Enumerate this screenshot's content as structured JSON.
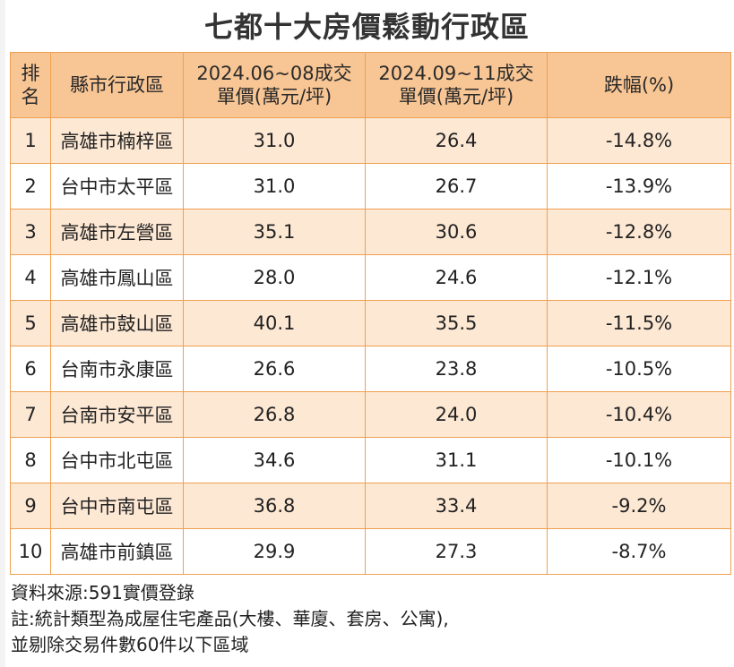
{
  "title": "七都十大房價鬆動行政區",
  "headers": {
    "rank": [
      "排",
      "名"
    ],
    "district": "縣市行政區",
    "period1": [
      "2024.06~08成交",
      "單價(萬元/坪)"
    ],
    "period2": [
      "2024.09~11成交",
      "單價(萬元/坪)"
    ],
    "change": "跌幅(%)"
  },
  "rows": [
    {
      "rank": "1",
      "district": "高雄市楠梓區",
      "p1": "31.0",
      "p2": "26.4",
      "change": "-14.8%"
    },
    {
      "rank": "2",
      "district": "台中市太平區",
      "p1": "31.0",
      "p2": "26.7",
      "change": "-13.9%"
    },
    {
      "rank": "3",
      "district": "高雄市左營區",
      "p1": "35.1",
      "p2": "30.6",
      "change": "-12.8%"
    },
    {
      "rank": "4",
      "district": "高雄市鳳山區",
      "p1": "28.0",
      "p2": "24.6",
      "change": "-12.1%"
    },
    {
      "rank": "5",
      "district": "高雄市鼓山區",
      "p1": "40.1",
      "p2": "35.5",
      "change": "-11.5%"
    },
    {
      "rank": "6",
      "district": "台南市永康區",
      "p1": "26.6",
      "p2": "23.8",
      "change": "-10.5%"
    },
    {
      "rank": "7",
      "district": "台南市安平區",
      "p1": "26.8",
      "p2": "24.0",
      "change": "-10.4%"
    },
    {
      "rank": "8",
      "district": "台中市北屯區",
      "p1": "34.6",
      "p2": "31.1",
      "change": "-10.1%"
    },
    {
      "rank": "9",
      "district": "台中市南屯區",
      "p1": "36.8",
      "p2": "33.4",
      "change": "-9.2%"
    },
    {
      "rank": "10",
      "district": "高雄市前鎮區",
      "p1": "29.9",
      "p2": "27.3",
      "change": "-8.7%"
    }
  ],
  "footer": {
    "source": "資料來源:591實價登錄",
    "note1": "註:統計類型為成屋住宅產品(大樓、華廈、套房、公寓),",
    "note2": "並剔除交易件數60件以下區域"
  },
  "colors": {
    "header_bg": "#f8c594",
    "odd_row_bg": "#fde8d4",
    "even_row_bg": "#ffffff",
    "border": "#f0a050"
  }
}
